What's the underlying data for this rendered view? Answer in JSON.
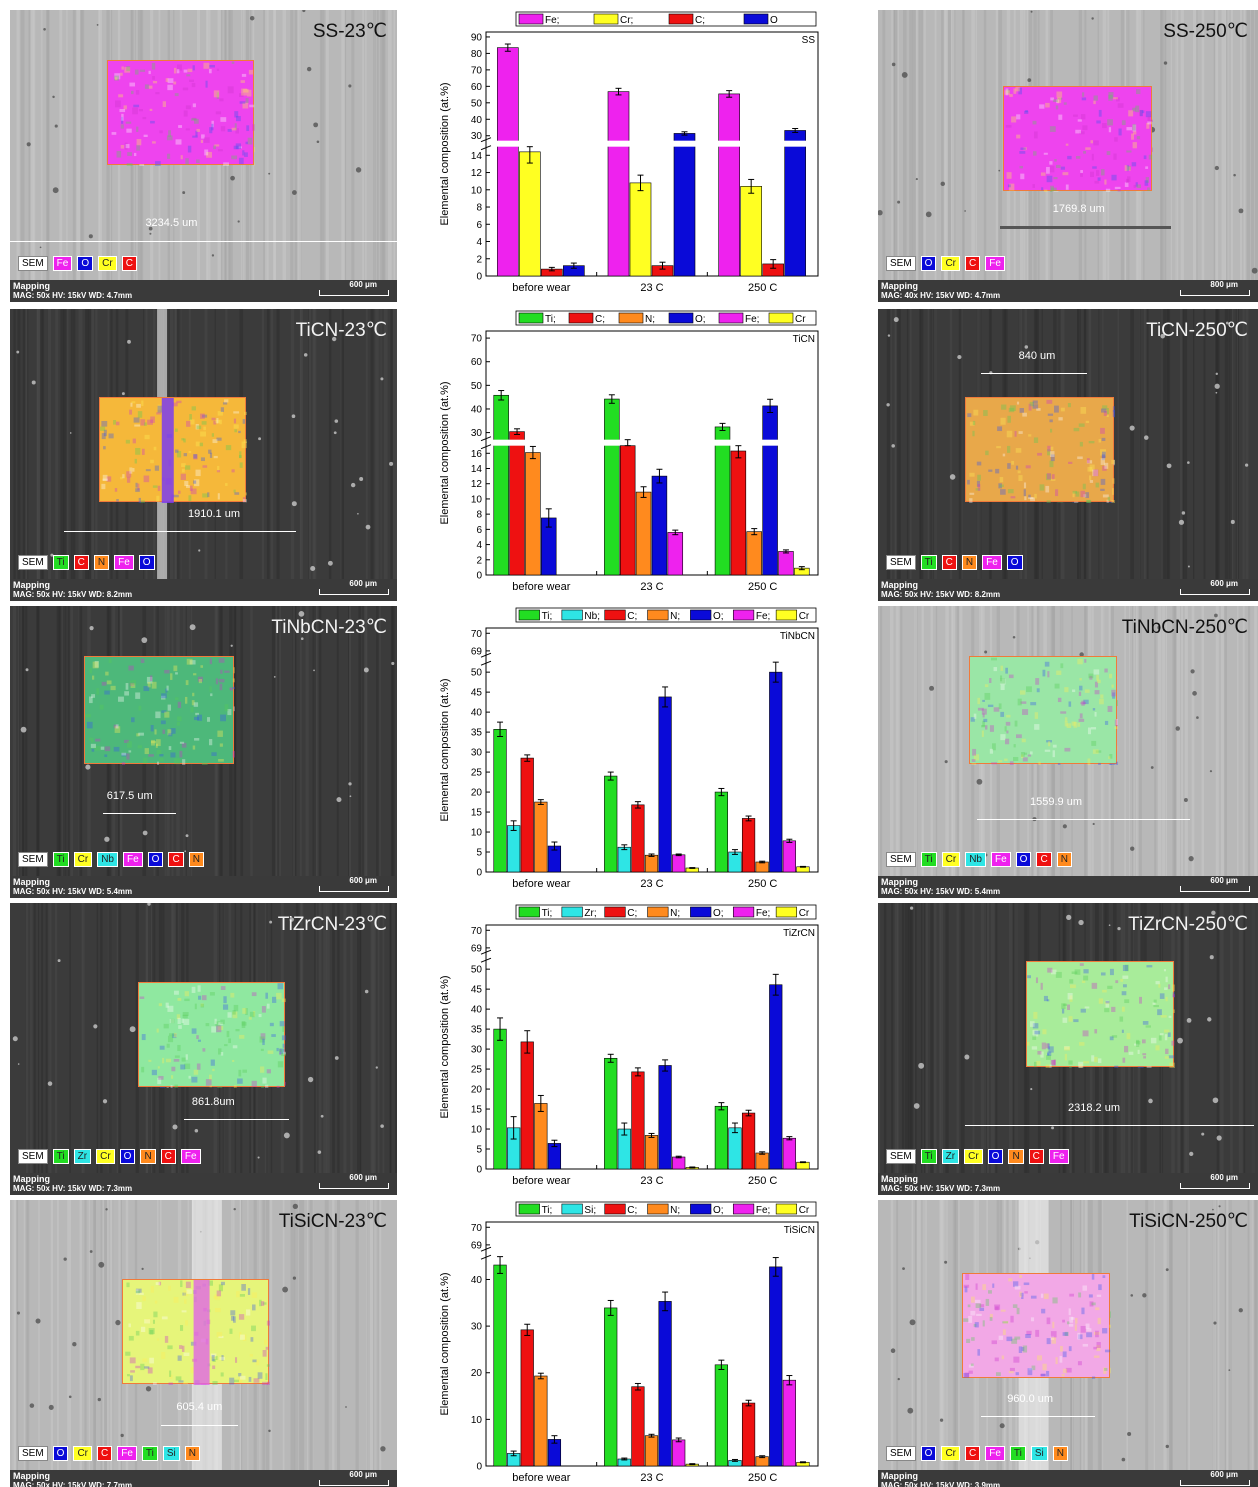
{
  "colors": {
    "Ti": "#22dd22",
    "Nb": "#2ee5e5",
    "Zr": "#2ee5e5",
    "Si": "#2ee5e5",
    "C": "#ee1111",
    "N": "#ff8a1e",
    "O": "#0a0ad8",
    "Fe": "#ee22ee",
    "Cr": "#ffff22"
  },
  "rows": [
    {
      "left": {
        "title": "SS-23℃",
        "measure": "3234.5 um",
        "tone": "light",
        "legend": [
          "SEM",
          "Fe",
          "O",
          "Cr",
          "C"
        ],
        "footer": [
          "Mapping",
          "MAG: 50x  HV: 15kV  WD: 4.7mm"
        ],
        "scale": "600 μm",
        "map_tint": "#ee44ee"
      },
      "right": {
        "title": "SS-250℃",
        "measure": "1769.8 um",
        "tone": "light",
        "legend": [
          "SEM",
          "O",
          "Cr",
          "C",
          "Fe"
        ],
        "footer": [
          "Mapping",
          "MAG: 40x  HV: 15kV  WD: 4.7mm"
        ],
        "scale": "800 μm",
        "map_tint": "#ee44ee"
      },
      "chart": {
        "type": "bar",
        "label": "SS",
        "broken": true,
        "ylabel": "Elemental composition (at.%)",
        "categories": [
          "before wear",
          "23 C",
          "250 C"
        ],
        "legend": [
          "Fe;",
          "Cr;",
          "C;",
          "O"
        ],
        "series": [
          {
            "name": "Fe",
            "values": [
              83.5,
              56.8,
              55.4
            ],
            "errors": [
              2.2,
              2.0,
              2.0
            ]
          },
          {
            "name": "Cr",
            "values": [
              14.4,
              10.8,
              10.4
            ],
            "errors": [
              1.3,
              0.9,
              0.8
            ]
          },
          {
            "name": "C",
            "values": [
              0.8,
              1.2,
              1.4
            ],
            "errors": [
              0.2,
              0.4,
              0.5
            ]
          },
          {
            "name": "O",
            "values": [
              1.2,
              31.4,
              33.2
            ],
            "errors": [
              0.3,
              1.0,
              1.2
            ]
          }
        ],
        "lower_ticks": [
          "0",
          "2",
          "4",
          "6",
          "8",
          "10",
          "12",
          "14"
        ],
        "upper_ticks": [
          "30",
          "40",
          "50",
          "60",
          "70",
          "80",
          "90"
        ]
      }
    },
    {
      "left": {
        "title": "TiCN-23℃",
        "measure": "1910.1 um",
        "tone": "dark",
        "legend": [
          "SEM",
          "Ti",
          "C",
          "N",
          "Fe",
          "O"
        ],
        "footer": [
          "Mapping",
          "MAG: 50x  HV: 15kV  WD: 8.2mm"
        ],
        "scale": "600 μm",
        "map_tint": "#f5b83a"
      },
      "right": {
        "title": "TiCN-250℃",
        "measure": "840 um",
        "tone": "dark",
        "legend": [
          "SEM",
          "Ti",
          "C",
          "N",
          "Fe",
          "O"
        ],
        "footer": [
          "Mapping",
          "MAG: 50x  HV: 15kV  WD: 8.2mm"
        ],
        "scale": "600 μm",
        "map_tint": "#e8a84a"
      },
      "chart": {
        "type": "bar",
        "label": "TiCN",
        "broken": true,
        "ylabel": "Elemental composition (at.%)",
        "categories": [
          "before wear",
          "23 C",
          "250 C"
        ],
        "legend": [
          "Ti;",
          "C;",
          "N;",
          "O;",
          "Fe;",
          "Cr"
        ],
        "series": [
          {
            "name": "Ti",
            "values": [
              45.8,
              44.2,
              32.4
            ],
            "errors": [
              2.0,
              1.8,
              1.5
            ]
          },
          {
            "name": "C",
            "values": [
              30.4,
              26.2,
              16.3
            ],
            "errors": [
              1.2,
              0.8,
              0.9
            ]
          },
          {
            "name": "N",
            "values": [
              16.1,
              10.9,
              5.7
            ],
            "errors": [
              0.8,
              0.7,
              0.4
            ]
          },
          {
            "name": "O",
            "values": [
              7.5,
              13.0,
              41.3
            ],
            "errors": [
              1.2,
              0.9,
              2.8
            ]
          },
          {
            "name": "Fe",
            "values": [
              0,
              5.6,
              3.1
            ],
            "errors": [
              0,
              0.3,
              0.2
            ]
          },
          {
            "name": "Cr",
            "values": [
              0,
              0,
              0.9
            ],
            "errors": [
              0,
              0,
              0.2
            ]
          }
        ],
        "lower_ticks": [
          "0",
          "2",
          "4",
          "6",
          "8",
          "10",
          "12",
          "14",
          "16"
        ],
        "upper_ticks": [
          "30",
          "40",
          "50",
          "60",
          "70"
        ]
      }
    },
    {
      "left": {
        "title": "TiNbCN-23℃",
        "measure": "617.5 um",
        "tone": "dark",
        "legend": [
          "SEM",
          "Ti",
          "Cr",
          "Nb",
          "Fe",
          "O",
          "C",
          "N"
        ],
        "footer": [
          "Mapping",
          "MAG: 50x  HV: 15kV  WD: 5.4mm"
        ],
        "scale": "600 μm",
        "map_tint": "#4db87a"
      },
      "right": {
        "title": "TiNbCN-250℃",
        "measure": "1559.9 um",
        "tone": "light",
        "legend": [
          "SEM",
          "Ti",
          "Cr",
          "Nb",
          "Fe",
          "O",
          "C",
          "N"
        ],
        "footer": [
          "Mapping",
          "MAG: 50x  HV: 15kV  WD: 5.4mm"
        ],
        "scale": "600 μm",
        "map_tint": "#9ae6a6"
      },
      "chart": {
        "type": "bar",
        "label": "TiNbCN",
        "broken": true,
        "ylabel": "Elemental composition (at.%)",
        "categories": [
          "before wear",
          "23 C",
          "250 C"
        ],
        "legend": [
          "Ti;",
          "Nb;",
          "C;",
          "N;",
          "O;",
          "Fe;",
          "Cr"
        ],
        "series": [
          {
            "name": "Ti",
            "values": [
              35.7,
              24.0,
              20.0
            ],
            "errors": [
              1.8,
              1.0,
              0.9
            ]
          },
          {
            "name": "Nb",
            "values": [
              11.6,
              6.2,
              5.0
            ],
            "errors": [
              1.2,
              0.6,
              0.6
            ]
          },
          {
            "name": "C",
            "values": [
              28.5,
              16.8,
              13.4
            ],
            "errors": [
              0.8,
              0.8,
              0.6
            ]
          },
          {
            "name": "N",
            "values": [
              17.5,
              4.2,
              2.5
            ],
            "errors": [
              0.6,
              0.3,
              0.2
            ]
          },
          {
            "name": "O",
            "values": [
              6.5,
              43.8,
              50.0
            ],
            "errors": [
              1.0,
              2.5,
              2.5
            ]
          },
          {
            "name": "Fe",
            "values": [
              0,
              4.3,
              7.8
            ],
            "errors": [
              0,
              0.2,
              0.4
            ]
          },
          {
            "name": "Cr",
            "values": [
              0,
              1.0,
              1.3
            ],
            "errors": [
              0,
              0.1,
              0.1
            ]
          }
        ],
        "lower_ticks": [
          "0",
          "5",
          "10",
          "15",
          "20",
          "25",
          "30",
          "35",
          "40",
          "45",
          "50"
        ],
        "upper_ticks": [
          "69",
          "70"
        ]
      }
    },
    {
      "left": {
        "title": "TiZrCN-23℃",
        "measure": "861.8um",
        "tone": "dark",
        "legend": [
          "SEM",
          "Ti",
          "Zr",
          "Cr",
          "O",
          "N",
          "C",
          "Fe"
        ],
        "footer": [
          "Mapping",
          "MAG: 50x  HV: 15kV  WD: 7.3mm"
        ],
        "scale": "600 μm",
        "map_tint": "#8fe8a0"
      },
      "right": {
        "title": "TiZrCN-250℃",
        "measure": "2318.2 um",
        "tone": "dark",
        "legend": [
          "SEM",
          "Ti",
          "Zr",
          "Cr",
          "O",
          "N",
          "C",
          "Fe"
        ],
        "footer": [
          "Mapping",
          "MAG: 50x  HV: 15kV  WD: 7.3mm"
        ],
        "scale": "600 μm",
        "map_tint": "#a8ec9a"
      },
      "chart": {
        "type": "bar",
        "label": "TiZrCN",
        "broken": true,
        "ylabel": "Elemental composition (at.%)",
        "categories": [
          "before wear",
          "23 C",
          "250 C"
        ],
        "legend": [
          "Ti;",
          "Zr;",
          "C;",
          "N;",
          "O;",
          "Fe;",
          "Cr"
        ],
        "series": [
          {
            "name": "Ti",
            "values": [
              35.0,
              27.7,
              15.7
            ],
            "errors": [
              2.8,
              1.0,
              0.9
            ]
          },
          {
            "name": "Zr",
            "values": [
              10.3,
              10.0,
              10.3
            ],
            "errors": [
              2.8,
              1.5,
              1.2
            ]
          },
          {
            "name": "C",
            "values": [
              31.8,
              24.3,
              14.0
            ],
            "errors": [
              2.8,
              1.0,
              0.7
            ]
          },
          {
            "name": "N",
            "values": [
              16.4,
              8.4,
              4.0
            ],
            "errors": [
              2.0,
              0.5,
              0.3
            ]
          },
          {
            "name": "O",
            "values": [
              6.4,
              25.9,
              46.1
            ],
            "errors": [
              0.8,
              1.4,
              2.6
            ]
          },
          {
            "name": "Fe",
            "values": [
              0,
              3.0,
              7.7
            ],
            "errors": [
              0,
              0.2,
              0.4
            ]
          },
          {
            "name": "Cr",
            "values": [
              0,
              0.4,
              1.7
            ],
            "errors": [
              0,
              0.1,
              0.1
            ]
          }
        ],
        "lower_ticks": [
          "0",
          "5",
          "10",
          "15",
          "20",
          "25",
          "30",
          "35",
          "40",
          "45",
          "50"
        ],
        "upper_ticks": [
          "69",
          "70"
        ]
      }
    },
    {
      "left": {
        "title": "TiSiCN-23℃",
        "measure": "605.4 um",
        "tone": "light",
        "legend": [
          "SEM",
          "O",
          "Cr",
          "C",
          "Fe",
          "Ti",
          "Si",
          "N"
        ],
        "footer": [
          "Mapping",
          "MAG: 50x  HV: 15kV  WD: 7.7mm"
        ],
        "scale": "600 μm",
        "map_tint": "#e6f57a"
      },
      "right": {
        "title": "TiSiCN-250℃",
        "measure": "960.0 um",
        "tone": "light",
        "legend": [
          "SEM",
          "O",
          "Cr",
          "C",
          "Fe",
          "Ti",
          "Si",
          "N"
        ],
        "footer": [
          "Mapping",
          "MAG: 50x  HV: 15kV  WD: 3.9mm"
        ],
        "scale": "600 μm",
        "map_tint": "#f2a8e6"
      },
      "chart": {
        "type": "bar",
        "label": "TiSiCN",
        "broken": true,
        "ylabel": "Elemental composition (at.%)",
        "categories": [
          "before wear",
          "23 C",
          "250 C"
        ],
        "legend": [
          "Ti;",
          "Si;",
          "C;",
          "N;",
          "O;",
          "Fe;",
          "Cr"
        ],
        "series": [
          {
            "name": "Ti",
            "values": [
              43.1,
              33.9,
              21.7
            ],
            "errors": [
              1.8,
              1.6,
              1.0
            ]
          },
          {
            "name": "Si",
            "values": [
              2.7,
              1.5,
              1.2
            ],
            "errors": [
              0.5,
              0.2,
              0.2
            ]
          },
          {
            "name": "C",
            "values": [
              29.2,
              17.0,
              13.5
            ],
            "errors": [
              1.2,
              0.7,
              0.6
            ]
          },
          {
            "name": "N",
            "values": [
              19.3,
              6.5,
              2.0
            ],
            "errors": [
              0.6,
              0.3,
              0.2
            ]
          },
          {
            "name": "O",
            "values": [
              5.7,
              35.3,
              42.7
            ],
            "errors": [
              0.8,
              2.0,
              2.0
            ]
          },
          {
            "name": "Fe",
            "values": [
              0,
              5.6,
              18.4
            ],
            "errors": [
              0,
              0.4,
              1.0
            ]
          },
          {
            "name": "Cr",
            "values": [
              0,
              0.4,
              0.8
            ],
            "errors": [
              0,
              0.1,
              0.1
            ]
          }
        ],
        "lower_ticks": [
          "0",
          "10",
          "20",
          "30",
          "40"
        ],
        "upper_ticks": [
          "69",
          "70"
        ]
      }
    }
  ]
}
